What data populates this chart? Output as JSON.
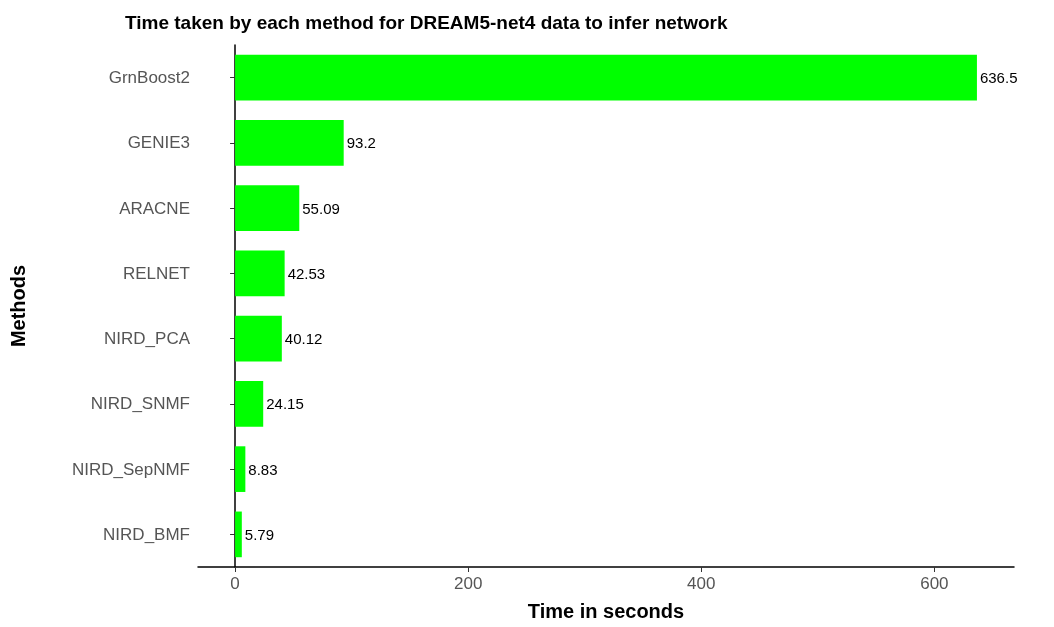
{
  "chart_data": {
    "type": "bar",
    "orientation": "horizontal",
    "title": "Time taken by each method for DREAM5-net4 data to infer network",
    "xlabel": "Time in seconds",
    "ylabel": "Methods",
    "categories": [
      "GrnBoost2",
      "GENIE3",
      "ARACNE",
      "RELNET",
      "NIRD_PCA",
      "NIRD_SNMF",
      "NIRD_SepNMF",
      "NIRD_BMF"
    ],
    "values": [
      636.5,
      93.2,
      55.09,
      42.53,
      40.12,
      24.15,
      8.83,
      5.79
    ],
    "color": "#00ff00",
    "xlim": [
      -31.8,
      668.3
    ],
    "xticks": [
      0,
      200,
      400,
      600
    ],
    "data_labels": true
  }
}
